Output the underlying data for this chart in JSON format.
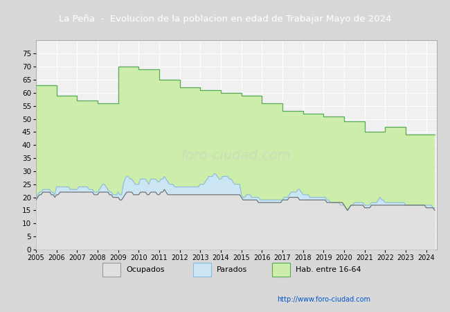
{
  "title": "La Peña  -  Evolucion de la poblacion en edad de Trabajar Mayo de 2024",
  "footer_url": "http://www.foro-ciudad.com",
  "ylim": [
    0,
    80
  ],
  "yticks": [
    0,
    5,
    10,
    15,
    20,
    25,
    30,
    35,
    40,
    45,
    50,
    55,
    60,
    65,
    70,
    75
  ],
  "hab_years": [
    2005,
    2006,
    2007,
    2008,
    2009,
    2010,
    2011,
    2012,
    2013,
    2014,
    2015,
    2016,
    2017,
    2018,
    2019,
    2020,
    2021,
    2022,
    2023,
    2024
  ],
  "hab_values": [
    63,
    59,
    57,
    56,
    70,
    69,
    65,
    62,
    61,
    60,
    59,
    56,
    53,
    52,
    51,
    49,
    45,
    47,
    44,
    44
  ],
  "ocupados_x": [
    2005.0,
    2005.083,
    2005.167,
    2005.25,
    2005.333,
    2005.417,
    2005.5,
    2005.583,
    2005.667,
    2005.75,
    2005.833,
    2005.917,
    2006.0,
    2006.083,
    2006.167,
    2006.25,
    2006.333,
    2006.417,
    2006.5,
    2006.583,
    2006.667,
    2006.75,
    2006.833,
    2006.917,
    2007.0,
    2007.083,
    2007.167,
    2007.25,
    2007.333,
    2007.417,
    2007.5,
    2007.583,
    2007.667,
    2007.75,
    2007.833,
    2007.917,
    2008.0,
    2008.083,
    2008.167,
    2008.25,
    2008.333,
    2008.417,
    2008.5,
    2008.583,
    2008.667,
    2008.75,
    2008.833,
    2008.917,
    2009.0,
    2009.083,
    2009.167,
    2009.25,
    2009.333,
    2009.417,
    2009.5,
    2009.583,
    2009.667,
    2009.75,
    2009.833,
    2009.917,
    2010.0,
    2010.083,
    2010.167,
    2010.25,
    2010.333,
    2010.417,
    2010.5,
    2010.583,
    2010.667,
    2010.75,
    2010.833,
    2010.917,
    2011.0,
    2011.083,
    2011.167,
    2011.25,
    2011.333,
    2011.417,
    2011.5,
    2011.583,
    2011.667,
    2011.75,
    2011.833,
    2011.917,
    2012.0,
    2012.083,
    2012.167,
    2012.25,
    2012.333,
    2012.417,
    2012.5,
    2012.583,
    2012.667,
    2012.75,
    2012.833,
    2012.917,
    2013.0,
    2013.083,
    2013.167,
    2013.25,
    2013.333,
    2013.417,
    2013.5,
    2013.583,
    2013.667,
    2013.75,
    2013.833,
    2013.917,
    2014.0,
    2014.083,
    2014.167,
    2014.25,
    2014.333,
    2014.417,
    2014.5,
    2014.583,
    2014.667,
    2014.75,
    2014.833,
    2014.917,
    2015.0,
    2015.083,
    2015.167,
    2015.25,
    2015.333,
    2015.417,
    2015.5,
    2015.583,
    2015.667,
    2015.75,
    2015.833,
    2015.917,
    2016.0,
    2016.083,
    2016.167,
    2016.25,
    2016.333,
    2016.417,
    2016.5,
    2016.583,
    2016.667,
    2016.75,
    2016.833,
    2016.917,
    2017.0,
    2017.083,
    2017.167,
    2017.25,
    2017.333,
    2017.417,
    2017.5,
    2017.583,
    2017.667,
    2017.75,
    2017.833,
    2017.917,
    2018.0,
    2018.083,
    2018.167,
    2018.25,
    2018.333,
    2018.417,
    2018.5,
    2018.583,
    2018.667,
    2018.75,
    2018.833,
    2018.917,
    2019.0,
    2019.083,
    2019.167,
    2019.25,
    2019.333,
    2019.417,
    2019.5,
    2019.583,
    2019.667,
    2019.75,
    2019.833,
    2019.917,
    2020.0,
    2020.083,
    2020.167,
    2020.25,
    2020.333,
    2020.417,
    2020.5,
    2020.583,
    2020.667,
    2020.75,
    2020.833,
    2020.917,
    2021.0,
    2021.083,
    2021.167,
    2021.25,
    2021.333,
    2021.417,
    2021.5,
    2021.583,
    2021.667,
    2021.75,
    2021.833,
    2021.917,
    2022.0,
    2022.083,
    2022.167,
    2022.25,
    2022.333,
    2022.417,
    2022.5,
    2022.583,
    2022.667,
    2022.75,
    2022.833,
    2022.917,
    2023.0,
    2023.083,
    2023.167,
    2023.25,
    2023.333,
    2023.417,
    2023.5,
    2023.583,
    2023.667,
    2023.75,
    2023.833,
    2023.917,
    2024.0,
    2024.083,
    2024.167,
    2024.25,
    2024.333,
    2024.417
  ],
  "ocupados_y": [
    19,
    20,
    21,
    21,
    22,
    22,
    22,
    22,
    22,
    21,
    21,
    20,
    21,
    21,
    22,
    22,
    22,
    22,
    22,
    22,
    22,
    22,
    22,
    22,
    22,
    22,
    22,
    22,
    22,
    22,
    22,
    22,
    22,
    22,
    21,
    21,
    21,
    22,
    22,
    22,
    22,
    22,
    22,
    21,
    21,
    20,
    20,
    20,
    20,
    19,
    19,
    20,
    21,
    22,
    22,
    22,
    22,
    21,
    21,
    21,
    21,
    22,
    22,
    22,
    22,
    21,
    21,
    22,
    22,
    22,
    22,
    21,
    21,
    22,
    22,
    23,
    22,
    21,
    21,
    21,
    21,
    21,
    21,
    21,
    21,
    21,
    21,
    21,
    21,
    21,
    21,
    21,
    21,
    21,
    21,
    21,
    21,
    21,
    21,
    21,
    21,
    21,
    21,
    21,
    21,
    21,
    21,
    21,
    21,
    21,
    21,
    21,
    21,
    21,
    21,
    21,
    21,
    21,
    21,
    21,
    20,
    19,
    19,
    19,
    19,
    19,
    19,
    19,
    19,
    19,
    18,
    18,
    18,
    18,
    18,
    18,
    18,
    18,
    18,
    18,
    18,
    18,
    18,
    18,
    19,
    19,
    19,
    19,
    20,
    20,
    20,
    20,
    20,
    20,
    19,
    19,
    19,
    19,
    19,
    19,
    19,
    19,
    19,
    19,
    19,
    19,
    19,
    19,
    19,
    19,
    18,
    18,
    18,
    18,
    18,
    18,
    18,
    18,
    18,
    18,
    17,
    16,
    15,
    16,
    17,
    17,
    17,
    17,
    17,
    17,
    17,
    17,
    16,
    16,
    16,
    16,
    17,
    17,
    17,
    17,
    17,
    17,
    17,
    17,
    17,
    17,
    17,
    17,
    17,
    17,
    17,
    17,
    17,
    17,
    17,
    17,
    17,
    17,
    17,
    17,
    17,
    17,
    17,
    17,
    17,
    17,
    17,
    17,
    16,
    16,
    16,
    16,
    16,
    15
  ],
  "parados_y": [
    19,
    21,
    22,
    22,
    23,
    23,
    23,
    23,
    23,
    22,
    22,
    21,
    24,
    24,
    24,
    24,
    24,
    24,
    24,
    24,
    23,
    23,
    23,
    23,
    23,
    24,
    24,
    24,
    24,
    24,
    24,
    23,
    23,
    23,
    22,
    22,
    22,
    23,
    24,
    25,
    25,
    24,
    23,
    22,
    22,
    21,
    21,
    21,
    22,
    21,
    21,
    25,
    27,
    28,
    28,
    27,
    27,
    26,
    25,
    25,
    25,
    27,
    27,
    27,
    27,
    26,
    25,
    27,
    27,
    27,
    27,
    26,
    26,
    27,
    27,
    28,
    27,
    26,
    25,
    25,
    25,
    24,
    24,
    24,
    24,
    24,
    24,
    24,
    24,
    24,
    24,
    24,
    24,
    24,
    24,
    24,
    25,
    25,
    25,
    26,
    27,
    28,
    28,
    28,
    29,
    29,
    28,
    27,
    27,
    28,
    28,
    28,
    28,
    27,
    27,
    26,
    25,
    25,
    25,
    25,
    21,
    20,
    20,
    21,
    21,
    21,
    20,
    20,
    20,
    20,
    20,
    19,
    19,
    19,
    19,
    19,
    19,
    19,
    19,
    19,
    19,
    19,
    19,
    19,
    19,
    20,
    20,
    20,
    21,
    22,
    22,
    22,
    22,
    23,
    23,
    22,
    21,
    21,
    21,
    21,
    20,
    20,
    20,
    20,
    20,
    20,
    20,
    20,
    20,
    20,
    19,
    19,
    18,
    18,
    18,
    18,
    18,
    18,
    17,
    17,
    17,
    16,
    15,
    16,
    17,
    17,
    18,
    18,
    18,
    18,
    18,
    18,
    17,
    17,
    17,
    17,
    18,
    18,
    18,
    18,
    19,
    20,
    19,
    19,
    18,
    18,
    18,
    18,
    18,
    18,
    18,
    18,
    18,
    18,
    18,
    18,
    17,
    17,
    17,
    17,
    17,
    17,
    17,
    17,
    17,
    17,
    17,
    17,
    17,
    17,
    17,
    17,
    16,
    16
  ],
  "title_bg_color": "#4169b0",
  "title_text_color": "#ffffff",
  "fig_bg_color": "#d8d8d8",
  "plot_bg_color": "#f0f0f0",
  "grid_color": "#ffffff",
  "ocupados_line_color": "#666666",
  "parados_line_color": "#88bbdd",
  "parados_fill_color": "#cce5f5",
  "ocupados_fill_color": "#e0e0e0",
  "hab_line_color": "#55aa55",
  "hab_fill_color": "#cceeaa"
}
